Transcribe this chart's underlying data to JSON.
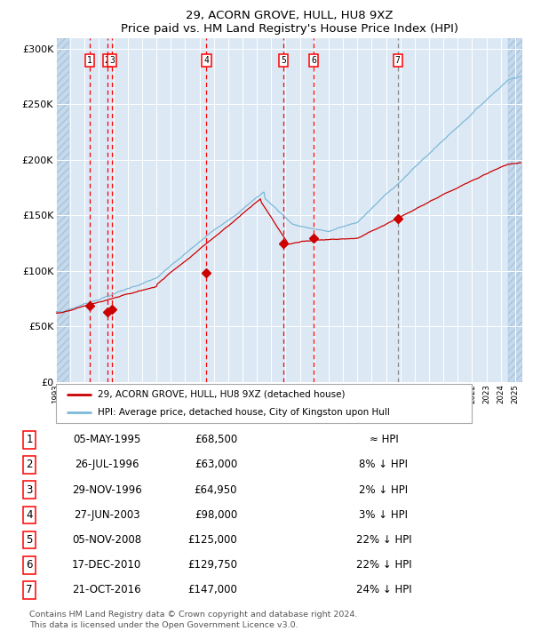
{
  "title": "29, ACORN GROVE, HULL, HU8 9XZ",
  "subtitle": "Price paid vs. HM Land Registry's House Price Index (HPI)",
  "ylabel_ticks": [
    "£0",
    "£50K",
    "£100K",
    "£150K",
    "£200K",
    "£250K",
    "£300K"
  ],
  "ytick_values": [
    0,
    50000,
    100000,
    150000,
    200000,
    250000,
    300000
  ],
  "ylim": [
    0,
    310000
  ],
  "xlim_start": 1993.0,
  "xlim_end": 2025.5,
  "hpi_color": "#7db8d8",
  "price_color": "#cc0000",
  "bg_color": "#dce9f5",
  "sale_dates_decimal": [
    1995.35,
    1996.57,
    1996.91,
    2003.49,
    2008.84,
    2010.96,
    2016.81
  ],
  "sale_prices": [
    68500,
    63000,
    64950,
    98000,
    125000,
    129750,
    147000
  ],
  "sale_labels": [
    "1",
    "2",
    "3",
    "4",
    "5",
    "6",
    "7"
  ],
  "vline_red_indices": [
    0,
    1,
    2,
    3,
    4,
    5
  ],
  "vline_grey_index": 6,
  "legend_price_label": "29, ACORN GROVE, HULL, HU8 9XZ (detached house)",
  "legend_hpi_label": "HPI: Average price, detached house, City of Kingston upon Hull",
  "table_rows": [
    [
      "1",
      "05-MAY-1995",
      "£68,500",
      "≈ HPI"
    ],
    [
      "2",
      "26-JUL-1996",
      "£63,000",
      "8% ↓ HPI"
    ],
    [
      "3",
      "29-NOV-1996",
      "£64,950",
      "2% ↓ HPI"
    ],
    [
      "4",
      "27-JUN-2003",
      "£98,000",
      "3% ↓ HPI"
    ],
    [
      "5",
      "05-NOV-2008",
      "£125,000",
      "22% ↓ HPI"
    ],
    [
      "6",
      "17-DEC-2010",
      "£129,750",
      "22% ↓ HPI"
    ],
    [
      "7",
      "21-OCT-2016",
      "£147,000",
      "24% ↓ HPI"
    ]
  ],
  "footer_line1": "Contains HM Land Registry data © Crown copyright and database right 2024.",
  "footer_line2": "This data is licensed under the Open Government Licence v3.0."
}
